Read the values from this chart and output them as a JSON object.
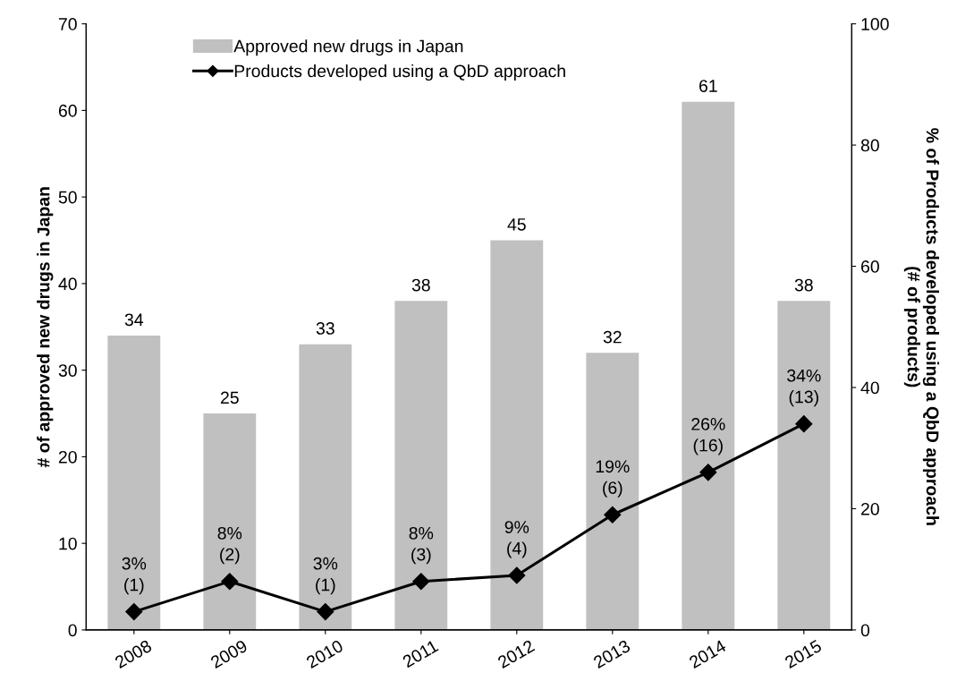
{
  "chart_data": {
    "type": "bar",
    "categories": [
      "2008",
      "2009",
      "2010",
      "2011",
      "2012",
      "2013",
      "2014",
      "2015"
    ],
    "series": [
      {
        "name": "Approved new drugs in Japan",
        "color": "#c0c0c0",
        "values": [
          34,
          25,
          33,
          38,
          45,
          32,
          61,
          38
        ],
        "value_labels": [
          "34",
          "25",
          "33",
          "38",
          "45",
          "32",
          "61",
          "38"
        ]
      },
      {
        "name": "Products developed using a QbD approach",
        "type": "line",
        "axis": "y2",
        "color": "#000000",
        "marker": "diamond",
        "line_style": "solid",
        "values": [
          3,
          8,
          3,
          8,
          9,
          19,
          26,
          34
        ],
        "value_labels": [
          "3%\n(1)",
          "8%\n(2)",
          "3%\n(1)",
          "8%\n(3)",
          "9%\n(4)",
          "19%\n(6)",
          "26%\n(16)",
          "34%\n(13)"
        ]
      }
    ],
    "ylabel": "# of approved new drugs in Japan",
    "y2label": "% of Products developed using a QbD approach\n(# of products)",
    "ylim": [
      0,
      70
    ],
    "yticks": [
      0,
      10,
      20,
      30,
      40,
      50,
      60,
      70
    ],
    "y2lim": [
      0,
      100
    ],
    "y2ticks": [
      0,
      20,
      40,
      60,
      80,
      100
    ],
    "grid": false,
    "legend": "top left"
  }
}
